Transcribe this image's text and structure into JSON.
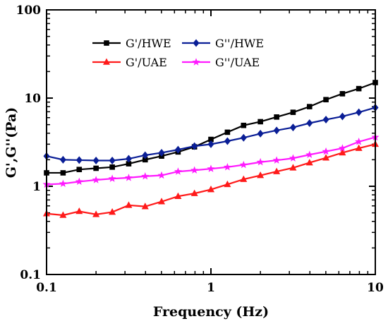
{
  "chart_data": {
    "type": "line",
    "title": "",
    "xlabel": "Frequency (Hz)",
    "ylabel": "G',G''(Pa)",
    "xscale": "log",
    "yscale": "log",
    "xlim": [
      0.1,
      10
    ],
    "ylim": [
      0.1,
      100
    ],
    "xticks": [
      {
        "value": 0.1,
        "label": "0.1"
      },
      {
        "value": 1,
        "label": "1"
      },
      {
        "value": 10,
        "label": "10"
      }
    ],
    "yticks": [
      {
        "value": 0.1,
        "label": "0.1"
      },
      {
        "value": 1,
        "label": "1"
      },
      {
        "value": 10,
        "label": "10"
      },
      {
        "value": 100,
        "label": "100"
      }
    ],
    "grid": false,
    "legend_position": "top-left",
    "x": [
      0.1,
      0.126,
      0.158,
      0.2,
      0.251,
      0.316,
      0.398,
      0.501,
      0.631,
      0.794,
      1.0,
      1.26,
      1.58,
      2.0,
      2.51,
      3.16,
      3.98,
      5.01,
      6.31,
      7.94,
      10.0
    ],
    "series": [
      {
        "name": "G'/HWE",
        "color": "#000000",
        "marker": "square",
        "values": [
          1.42,
          1.42,
          1.55,
          1.6,
          1.65,
          1.8,
          2.0,
          2.2,
          2.45,
          2.8,
          3.4,
          4.1,
          4.9,
          5.4,
          6.1,
          6.9,
          8.0,
          9.6,
          11.2,
          12.8,
          15.0
        ]
      },
      {
        "name": "G''/HWE",
        "color": "#0a1e96",
        "marker": "diamond",
        "values": [
          2.2,
          2.0,
          1.98,
          1.96,
          1.96,
          2.05,
          2.25,
          2.4,
          2.6,
          2.85,
          3.0,
          3.25,
          3.55,
          3.95,
          4.3,
          4.65,
          5.2,
          5.7,
          6.2,
          6.9,
          7.8
        ]
      },
      {
        "name": "G'/UAE",
        "color": "#ff1a1a",
        "marker": "triangle",
        "values": [
          0.49,
          0.47,
          0.52,
          0.48,
          0.51,
          0.61,
          0.59,
          0.67,
          0.77,
          0.83,
          0.92,
          1.05,
          1.2,
          1.33,
          1.47,
          1.62,
          1.85,
          2.1,
          2.4,
          2.7,
          3.0
        ]
      },
      {
        "name": "G''/UAE",
        "color": "#ff1aff",
        "marker": "star",
        "values": [
          1.05,
          1.07,
          1.13,
          1.18,
          1.22,
          1.25,
          1.3,
          1.33,
          1.47,
          1.52,
          1.58,
          1.65,
          1.75,
          1.88,
          1.97,
          2.08,
          2.28,
          2.48,
          2.7,
          3.2,
          3.6
        ]
      }
    ]
  }
}
